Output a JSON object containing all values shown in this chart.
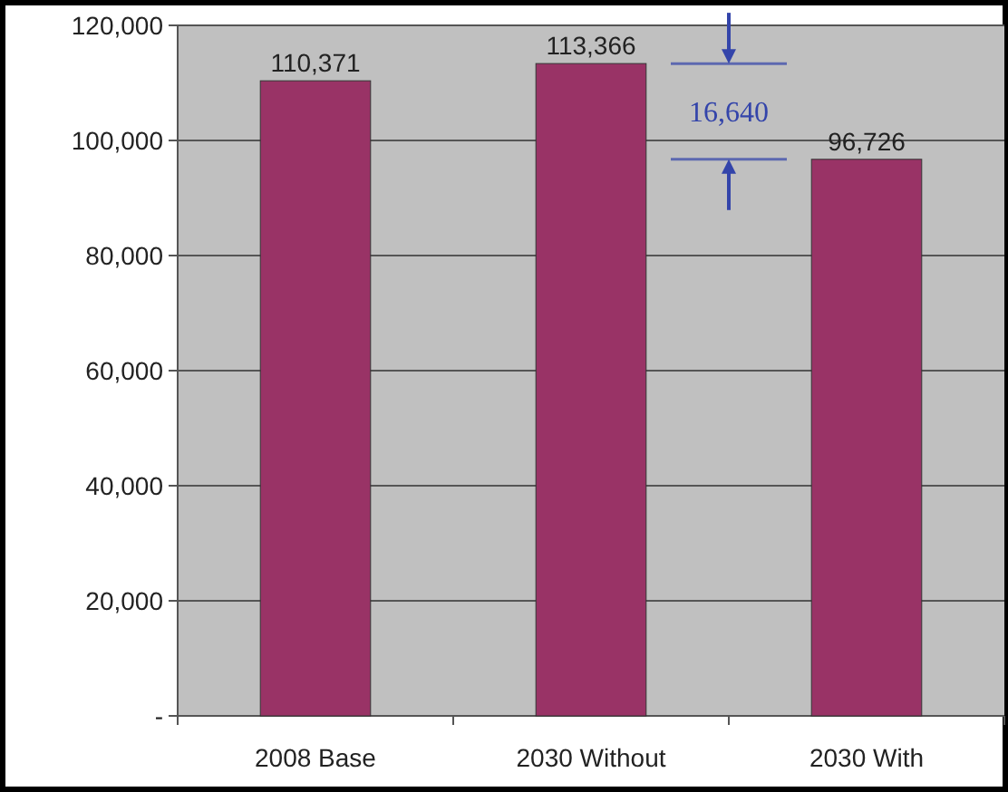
{
  "chart_data": {
    "type": "bar",
    "categories": [
      "2008 Base",
      "2030 Without",
      "2030 With"
    ],
    "values": [
      110371,
      113366,
      96726
    ],
    "color": "#993366",
    "value_labels": [
      "110,371",
      "113,366",
      "96,726"
    ],
    "ylim": [
      0,
      120000
    ],
    "yticks": [
      {
        "value": 0,
        "label": "-"
      },
      {
        "value": 20000,
        "label": "20,000"
      },
      {
        "value": 40000,
        "label": "40,000"
      },
      {
        "value": 60000,
        "label": "60,000"
      },
      {
        "value": 80000,
        "label": "80,000"
      },
      {
        "value": 100000,
        "label": "100,000"
      },
      {
        "value": 120000,
        "label": "120,000"
      }
    ],
    "grid": "y",
    "annotations": [
      "16,640"
    ]
  }
}
